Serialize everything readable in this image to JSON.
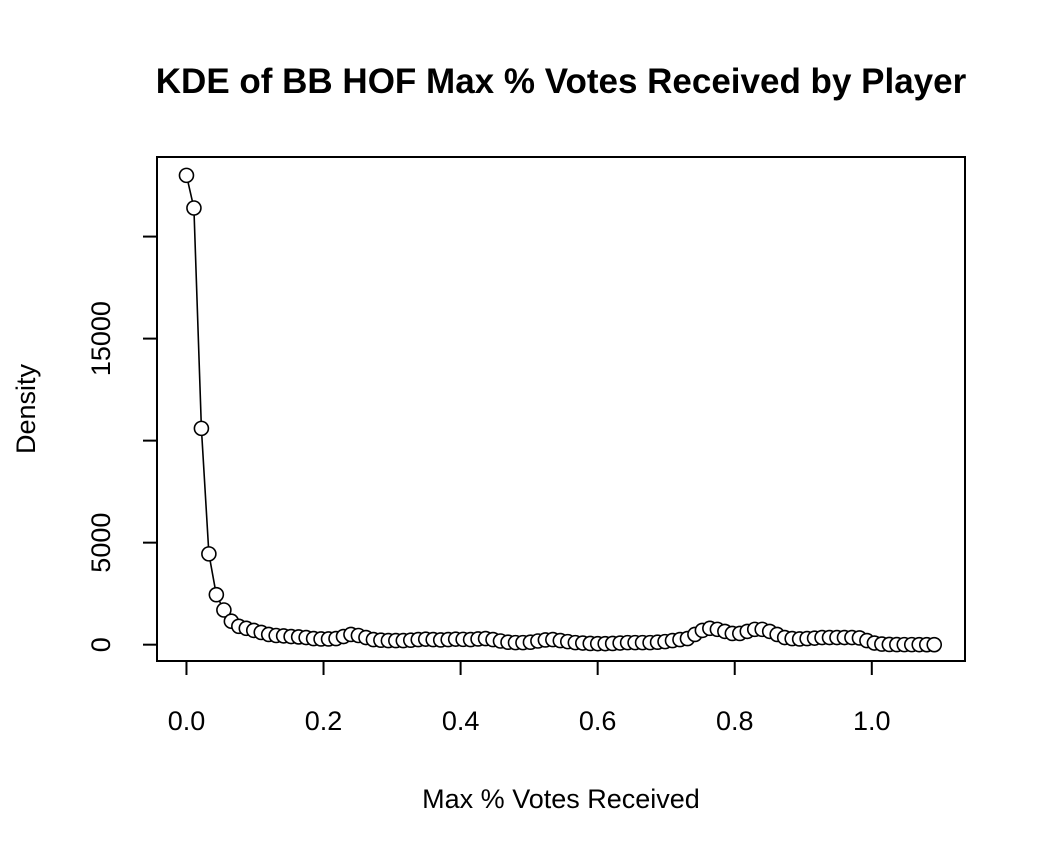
{
  "chart_data": {
    "type": "line",
    "title": "KDE of BB HOF Max % Votes Received by Player",
    "xlabel": "Max % Votes Received",
    "ylabel": "Density",
    "xlim": [
      -0.043,
      1.136
    ],
    "ylim": [
      -800,
      23900
    ],
    "x_ticks": [
      0.0,
      0.2,
      0.4,
      0.6,
      0.8,
      1.0
    ],
    "x_tick_labels": [
      "0.0",
      "0.2",
      "0.4",
      "0.6",
      "0.8",
      "1.0"
    ],
    "y_ticks": [
      0,
      5000,
      10000,
      15000,
      20000
    ],
    "y_tick_labels": [
      "0",
      "5000",
      "",
      "15000",
      ""
    ],
    "grid": false,
    "markers": "open-circle",
    "series": [
      {
        "x": [
          0.0,
          0.0109,
          0.0218,
          0.0327,
          0.0436,
          0.0546,
          0.0655,
          0.0764,
          0.0873,
          0.0982,
          0.1091,
          0.12,
          0.1309,
          0.1418,
          0.1527,
          0.1637,
          0.1746,
          0.1855,
          0.1964,
          0.2073,
          0.2182,
          0.2291,
          0.24,
          0.2509,
          0.2619,
          0.2728,
          0.2837,
          0.2946,
          0.3055,
          0.3164,
          0.3273,
          0.3382,
          0.3491,
          0.36,
          0.371,
          0.3819,
          0.3928,
          0.4037,
          0.4146,
          0.4255,
          0.4364,
          0.4473,
          0.4582,
          0.4692,
          0.4801,
          0.491,
          0.5019,
          0.5128,
          0.5237,
          0.5346,
          0.5455,
          0.5564,
          0.5674,
          0.5783,
          0.5892,
          0.6001,
          0.611,
          0.6219,
          0.6328,
          0.6437,
          0.6546,
          0.6655,
          0.6765,
          0.6874,
          0.6983,
          0.7092,
          0.7201,
          0.731,
          0.7419,
          0.7528,
          0.7637,
          0.7747,
          0.7856,
          0.7965,
          0.8074,
          0.8183,
          0.8292,
          0.8401,
          0.851,
          0.8619,
          0.8729,
          0.8838,
          0.8947,
          0.9056,
          0.9165,
          0.9274,
          0.9383,
          0.9492,
          0.9601,
          0.971,
          0.982,
          0.9929,
          1.0038,
          1.0147,
          1.0256,
          1.0365,
          1.0474,
          1.0583,
          1.0692,
          1.0802,
          1.0911
        ],
        "y": [
          23000,
          21400,
          10600,
          4450,
          2450,
          1700,
          1150,
          900,
          800,
          700,
          600,
          500,
          450,
          430,
          400,
          380,
          350,
          300,
          280,
          280,
          300,
          400,
          500,
          450,
          350,
          250,
          220,
          200,
          200,
          200,
          220,
          250,
          270,
          250,
          230,
          250,
          270,
          260,
          250,
          280,
          300,
          250,
          180,
          120,
          100,
          100,
          120,
          180,
          230,
          250,
          200,
          150,
          100,
          80,
          60,
          50,
          50,
          60,
          80,
          100,
          100,
          100,
          100,
          120,
          150,
          200,
          250,
          300,
          500,
          700,
          800,
          750,
          650,
          550,
          550,
          650,
          750,
          750,
          650,
          500,
          350,
          300,
          280,
          300,
          320,
          350,
          350,
          350,
          350,
          350,
          330,
          200,
          80,
          30,
          10,
          5,
          3,
          2,
          1,
          0,
          0
        ]
      }
    ]
  }
}
